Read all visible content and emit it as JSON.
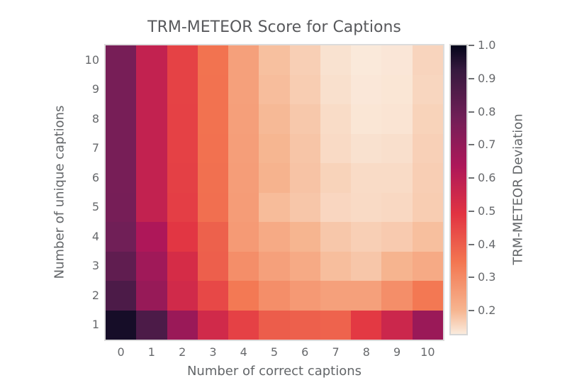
{
  "figure": {
    "background": "#ffffff",
    "title_color": "#58595c",
    "tick_color": "#67696c",
    "axis_label_color": "#636669",
    "frame_color": "#dcdcdc"
  },
  "chart_data": {
    "type": "heatmap",
    "title": "TRM-METEOR Score for Captions",
    "xlabel": "Number of correct captions",
    "ylabel": "Number of unique captions",
    "x_categories": [
      "0",
      "1",
      "2",
      "3",
      "4",
      "5",
      "6",
      "7",
      "8",
      "9",
      "10"
    ],
    "y_categories_top_to_bottom": [
      "10",
      "9",
      "8",
      "7",
      "6",
      "5",
      "4",
      "3",
      "2",
      "1"
    ],
    "values_rows_top_to_bottom": [
      [
        0.765,
        0.58,
        0.46,
        0.355,
        0.25,
        0.187,
        0.167,
        0.142,
        0.133,
        0.136,
        0.16
      ],
      [
        0.765,
        0.58,
        0.46,
        0.356,
        0.25,
        0.19,
        0.17,
        0.145,
        0.135,
        0.137,
        0.158
      ],
      [
        0.765,
        0.58,
        0.462,
        0.357,
        0.252,
        0.196,
        0.176,
        0.15,
        0.137,
        0.139,
        0.162
      ],
      [
        0.765,
        0.58,
        0.463,
        0.358,
        0.253,
        0.2,
        0.18,
        0.152,
        0.143,
        0.146,
        0.165
      ],
      [
        0.766,
        0.578,
        0.465,
        0.36,
        0.255,
        0.205,
        0.182,
        0.162,
        0.151,
        0.151,
        0.168
      ],
      [
        0.768,
        0.58,
        0.468,
        0.362,
        0.258,
        0.192,
        0.178,
        0.157,
        0.152,
        0.155,
        0.17
      ],
      [
        0.782,
        0.635,
        0.487,
        0.394,
        0.264,
        0.225,
        0.201,
        0.177,
        0.167,
        0.173,
        0.188
      ],
      [
        0.822,
        0.667,
        0.527,
        0.397,
        0.291,
        0.248,
        0.226,
        0.189,
        0.178,
        0.202,
        0.225
      ],
      [
        0.872,
        0.69,
        0.541,
        0.447,
        0.341,
        0.291,
        0.265,
        0.249,
        0.249,
        0.292,
        0.342
      ],
      [
        0.972,
        0.87,
        0.682,
        0.541,
        0.463,
        0.402,
        0.396,
        0.388,
        0.48,
        0.553,
        0.682
      ]
    ],
    "colorbar": {
      "label": "TRM-METEOR Deviation",
      "tick_labels": [
        "1.0",
        "0.9",
        "0.8",
        "0.7",
        "0.6",
        "0.5",
        "0.4",
        "0.3",
        "0.2"
      ],
      "vmin": 0.13,
      "vmax": 1.0,
      "dark_end": "high-values"
    },
    "colormap": {
      "name": "rocket-reversed",
      "stops": [
        {
          "p": 0.0,
          "c": "#03051A"
        },
        {
          "p": 0.083,
          "c": "#35193E"
        },
        {
          "p": 0.25,
          "c": "#701F57"
        },
        {
          "p": 0.417,
          "c": "#AD1759"
        },
        {
          "p": 0.583,
          "c": "#E13342"
        },
        {
          "p": 0.75,
          "c": "#F37651"
        },
        {
          "p": 0.917,
          "c": "#F6B48F"
        },
        {
          "p": 1.0,
          "c": "#FAEBDD"
        }
      ]
    },
    "layout_hints": {
      "legend": "none",
      "grid": "off",
      "colorbar_position": "right"
    }
  }
}
